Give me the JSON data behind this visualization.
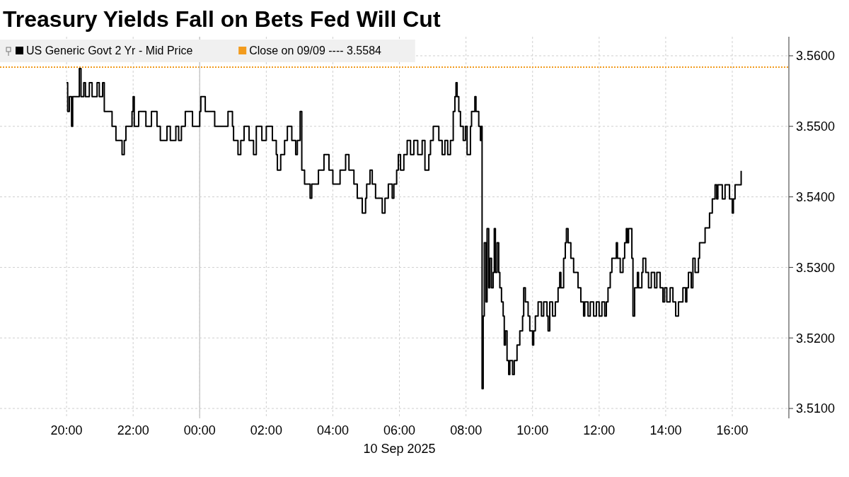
{
  "chart_data": {
    "type": "step",
    "title": "Treasury Yields Fall on Bets Fed Will Cut",
    "xlabel": "10 Sep 2025",
    "xlim": [
      "2025-09-09T18:00",
      "2025-09-10T17:42"
    ],
    "ylim": [
      3.5086,
      3.5627
    ],
    "xticks": [
      {
        "value": "2025-09-09T20:00",
        "label": "20:00"
      },
      {
        "value": "2025-09-09T22:00",
        "label": "22:00"
      },
      {
        "value": "2025-09-10T00:00",
        "label": "00:00"
      },
      {
        "value": "2025-09-10T02:00",
        "label": "02:00"
      },
      {
        "value": "2025-09-10T04:00",
        "label": "04:00"
      },
      {
        "value": "2025-09-10T06:00",
        "label": "06:00"
      },
      {
        "value": "2025-09-10T08:00",
        "label": "08:00"
      },
      {
        "value": "2025-09-10T10:00",
        "label": "10:00"
      },
      {
        "value": "2025-09-10T12:00",
        "label": "12:00"
      },
      {
        "value": "2025-09-10T14:00",
        "label": "14:00"
      },
      {
        "value": "2025-09-10T16:00",
        "label": "16:00"
      }
    ],
    "yticks": [
      {
        "value": 3.51,
        "label": "3.5100"
      },
      {
        "value": 3.52,
        "label": "3.5200"
      },
      {
        "value": 3.53,
        "label": "3.5300"
      },
      {
        "value": 3.54,
        "label": "3.5400"
      },
      {
        "value": 3.55,
        "label": "3.5500"
      },
      {
        "value": 3.56,
        "label": "3.5600"
      }
    ],
    "grid": true,
    "legend": "top left",
    "ref_lines": [
      {
        "axis": "y",
        "value": 3.5584,
        "label": "Close on 09/09 ---- 3.5584",
        "color": "#f29b1d",
        "line_style": "dotted"
      },
      {
        "axis": "x",
        "value": "2025-09-10T00:00",
        "color": "#c8c8c8",
        "line_style": "solid"
      }
    ],
    "series": [
      {
        "name": "US Generic Govt 2 Yr - Mid Price",
        "color": "#000000",
        "x": [
          "2025-09-09T20:00",
          "2025-09-09T20:02",
          "2025-09-09T20:05",
          "2025-09-09T20:09",
          "2025-09-09T20:11",
          "2025-09-09T20:23",
          "2025-09-09T20:26",
          "2025-09-09T20:31",
          "2025-09-09T20:34",
          "2025-09-09T20:41",
          "2025-09-09T20:46",
          "2025-09-09T20:55",
          "2025-09-09T20:59",
          "2025-09-09T21:05",
          "2025-09-09T21:08",
          "2025-09-09T21:22",
          "2025-09-09T21:29",
          "2025-09-09T21:40",
          "2025-09-09T21:44",
          "2025-09-09T21:47",
          "2025-09-09T21:58",
          "2025-09-09T22:00",
          "2025-09-09T22:02",
          "2025-09-09T22:10",
          "2025-09-09T22:23",
          "2025-09-09T22:33",
          "2025-09-09T22:43",
          "2025-09-09T22:49",
          "2025-09-09T23:01",
          "2025-09-09T23:07",
          "2025-09-09T23:17",
          "2025-09-09T23:22",
          "2025-09-09T23:27",
          "2025-09-09T23:34",
          "2025-09-09T23:47",
          "2025-09-10T00:00",
          "2025-09-10T00:02",
          "2025-09-10T00:10",
          "2025-09-10T00:27",
          "2025-09-10T00:49",
          "2025-09-10T00:51",
          "2025-09-10T00:59",
          "2025-09-10T01:01",
          "2025-09-10T01:09",
          "2025-09-10T01:14",
          "2025-09-10T01:20",
          "2025-09-10T01:29",
          "2025-09-10T01:37",
          "2025-09-10T01:42",
          "2025-09-10T01:52",
          "2025-09-10T02:00",
          "2025-09-10T02:11",
          "2025-09-10T02:18",
          "2025-09-10T02:20",
          "2025-09-10T02:26",
          "2025-09-10T02:33",
          "2025-09-10T02:38",
          "2025-09-10T02:46",
          "2025-09-10T02:53",
          "2025-09-10T02:56",
          "2025-09-10T03:01",
          "2025-09-10T03:04",
          "2025-09-10T03:09",
          "2025-09-10T03:19",
          "2025-09-10T03:22",
          "2025-09-10T03:34",
          "2025-09-10T03:44",
          "2025-09-10T03:53",
          "2025-09-10T04:00",
          "2025-09-10T04:13",
          "2025-09-10T04:23",
          "2025-09-10T04:29",
          "2025-09-10T04:38",
          "2025-09-10T04:44",
          "2025-09-10T04:53",
          "2025-09-10T04:59",
          "2025-09-10T05:01",
          "2025-09-10T05:07",
          "2025-09-10T05:11",
          "2025-09-10T05:17",
          "2025-09-10T05:29",
          "2025-09-10T05:34",
          "2025-09-10T05:40",
          "2025-09-10T05:47",
          "2025-09-10T05:50",
          "2025-09-10T05:55",
          "2025-09-10T05:58",
          "2025-09-10T06:02",
          "2025-09-10T06:08",
          "2025-09-10T06:14",
          "2025-09-10T06:20",
          "2025-09-10T06:26",
          "2025-09-10T06:33",
          "2025-09-10T06:41",
          "2025-09-10T06:46",
          "2025-09-10T06:53",
          "2025-09-10T06:56",
          "2025-09-10T07:01",
          "2025-09-10T07:11",
          "2025-09-10T07:17",
          "2025-09-10T07:22",
          "2025-09-10T07:27",
          "2025-09-10T07:32",
          "2025-09-10T07:37",
          "2025-09-10T07:40",
          "2025-09-10T07:42",
          "2025-09-10T07:44",
          "2025-09-10T07:47",
          "2025-09-10T07:50",
          "2025-09-10T07:55",
          "2025-09-10T07:59",
          "2025-09-10T08:02",
          "2025-09-10T08:08",
          "2025-09-10T08:10",
          "2025-09-10T08:16",
          "2025-09-10T08:18",
          "2025-09-10T08:23",
          "2025-09-10T08:26",
          "2025-09-10T08:28",
          "2025-09-10T08:29",
          "2025-09-10T08:31",
          "2025-09-10T08:33",
          "2025-09-10T08:36",
          "2025-09-10T08:38",
          "2025-09-10T08:41",
          "2025-09-10T08:43",
          "2025-09-10T08:46",
          "2025-09-10T08:49",
          "2025-09-10T08:51",
          "2025-09-10T08:53",
          "2025-09-10T08:56",
          "2025-09-10T08:59",
          "2025-09-10T09:01",
          "2025-09-10T09:04",
          "2025-09-10T09:07",
          "2025-09-10T09:09",
          "2025-09-10T09:11",
          "2025-09-10T09:14",
          "2025-09-10T09:17",
          "2025-09-10T09:19",
          "2025-09-10T09:24",
          "2025-09-10T09:27",
          "2025-09-10T09:32",
          "2025-09-10T09:37",
          "2025-09-10T09:42",
          "2025-09-10T09:44",
          "2025-09-10T09:47",
          "2025-09-10T09:52",
          "2025-09-10T09:55",
          "2025-09-10T10:00",
          "2025-09-10T10:02",
          "2025-09-10T10:05",
          "2025-09-10T10:10",
          "2025-09-10T10:16",
          "2025-09-10T10:20",
          "2025-09-10T10:26",
          "2025-09-10T10:28",
          "2025-09-10T10:31",
          "2025-09-10T10:36",
          "2025-09-10T10:41",
          "2025-09-10T10:46",
          "2025-09-10T10:49",
          "2025-09-10T10:51",
          "2025-09-10T10:56",
          "2025-09-10T10:59",
          "2025-09-10T11:01",
          "2025-09-10T11:04",
          "2025-09-10T11:09",
          "2025-09-10T11:14",
          "2025-09-10T11:22",
          "2025-09-10T11:27",
          "2025-09-10T11:32",
          "2025-09-10T11:34",
          "2025-09-10T11:40",
          "2025-09-10T11:44",
          "2025-09-10T11:50",
          "2025-09-10T11:55",
          "2025-09-10T12:00",
          "2025-09-10T12:05",
          "2025-09-10T12:10",
          "2025-09-10T12:13",
          "2025-09-10T12:16",
          "2025-09-10T12:20",
          "2025-09-10T12:23",
          "2025-09-10T12:28",
          "2025-09-10T12:31",
          "2025-09-10T12:33",
          "2025-09-10T12:38",
          "2025-09-10T12:43",
          "2025-09-10T12:46",
          "2025-09-10T12:49",
          "2025-09-10T12:51",
          "2025-09-10T12:53",
          "2025-09-10T12:59",
          "2025-09-10T13:01",
          "2025-09-10T13:04",
          "2025-09-10T13:09",
          "2025-09-10T13:11",
          "2025-09-10T13:17",
          "2025-09-10T13:19",
          "2025-09-10T13:24",
          "2025-09-10T13:29",
          "2025-09-10T13:34",
          "2025-09-10T13:40",
          "2025-09-10T13:44",
          "2025-09-10T13:50",
          "2025-09-10T13:55",
          "2025-09-10T13:58",
          "2025-09-10T14:02",
          "2025-09-10T14:08",
          "2025-09-10T14:13",
          "2025-09-10T14:18",
          "2025-09-10T14:23",
          "2025-09-10T14:26",
          "2025-09-10T14:31",
          "2025-09-10T14:36",
          "2025-09-10T14:38",
          "2025-09-10T14:41",
          "2025-09-10T14:46",
          "2025-09-10T14:49",
          "2025-09-10T14:53",
          "2025-09-10T14:59",
          "2025-09-10T15:01",
          "2025-09-10T15:09",
          "2025-09-10T15:11",
          "2025-09-10T15:17",
          "2025-09-10T15:19",
          "2025-09-10T15:24",
          "2025-09-10T15:29",
          "2025-09-10T15:32",
          "2025-09-10T15:34",
          "2025-09-10T15:42",
          "2025-09-10T15:47",
          "2025-09-10T15:55",
          "2025-09-10T16:00",
          "2025-09-10T16:02",
          "2025-09-10T16:05",
          "2025-09-10T16:16"
        ],
        "values": [
          3.5562,
          3.5521,
          3.5542,
          3.55,
          3.5542,
          3.5582,
          3.5542,
          3.5562,
          3.5542,
          3.5562,
          3.5542,
          3.5562,
          3.5542,
          3.5562,
          3.5521,
          3.55,
          3.548,
          3.546,
          3.548,
          3.55,
          3.5521,
          3.5542,
          3.55,
          3.5521,
          3.55,
          3.5521,
          3.55,
          3.548,
          3.55,
          3.548,
          3.55,
          3.548,
          3.55,
          3.5521,
          3.55,
          3.5521,
          3.5542,
          3.5521,
          3.55,
          3.55,
          3.5521,
          3.55,
          3.548,
          3.546,
          3.548,
          3.55,
          3.548,
          3.546,
          3.55,
          3.548,
          3.55,
          3.548,
          3.546,
          3.5438,
          3.546,
          3.548,
          3.55,
          3.548,
          3.546,
          3.548,
          3.5521,
          3.5438,
          3.5418,
          3.5398,
          3.5418,
          3.5438,
          3.546,
          3.5438,
          3.5418,
          3.5438,
          3.546,
          3.5438,
          3.5418,
          3.5398,
          3.5377,
          3.5398,
          3.5418,
          3.5438,
          3.5418,
          3.5398,
          3.5377,
          3.5398,
          3.5418,
          3.5398,
          3.5418,
          3.5438,
          3.546,
          3.5438,
          3.546,
          3.548,
          3.546,
          3.548,
          3.546,
          3.548,
          3.5438,
          3.546,
          3.548,
          3.55,
          3.548,
          3.546,
          3.548,
          3.546,
          3.548,
          3.5521,
          3.5542,
          3.5562,
          3.5542,
          3.5521,
          3.55,
          3.548,
          3.55,
          3.546,
          3.55,
          3.5521,
          3.5542,
          3.5521,
          3.55,
          3.548,
          3.55,
          3.5128,
          3.5231,
          3.5335,
          3.5251,
          3.5355,
          3.5271,
          3.5313,
          3.5271,
          3.5293,
          3.5355,
          3.5293,
          3.5335,
          3.5293,
          3.5271,
          3.5251,
          3.5231,
          3.519,
          3.521,
          3.5168,
          3.5148,
          3.5168,
          3.5148,
          3.5168,
          3.519,
          3.521,
          3.5231,
          3.5271,
          3.5251,
          3.5231,
          3.521,
          3.519,
          3.521,
          3.5231,
          3.5251,
          3.5231,
          3.5251,
          3.5231,
          3.521,
          3.5251,
          3.5231,
          3.5251,
          3.5271,
          3.5293,
          3.5271,
          3.5313,
          3.5335,
          3.5355,
          3.5335,
          3.5313,
          3.5293,
          3.5271,
          3.5251,
          3.5231,
          3.5251,
          3.5231,
          3.5251,
          3.5231,
          3.5251,
          3.5231,
          3.5251,
          3.5231,
          3.5251,
          3.5271,
          3.5293,
          3.5313,
          3.5313,
          3.5335,
          3.5313,
          3.5293,
          3.5313,
          3.5335,
          3.5355,
          3.5335,
          3.5355,
          3.5313,
          3.5231,
          3.5271,
          3.5293,
          3.5271,
          3.5293,
          3.5313,
          3.5293,
          3.5271,
          3.5293,
          3.5271,
          3.5293,
          3.5271,
          3.5251,
          3.5271,
          3.5251,
          3.5271,
          3.5251,
          3.5231,
          3.5251,
          3.5251,
          3.5271,
          3.5251,
          3.5271,
          3.5293,
          3.5271,
          3.5313,
          3.5293,
          3.5313,
          3.5335,
          3.5335,
          3.5356,
          3.5356,
          3.5377,
          3.5397,
          3.5417,
          3.5397,
          3.5417,
          3.5397,
          3.5417,
          3.5397,
          3.5377,
          3.5397,
          3.5417,
          3.5437
        ]
      }
    ]
  }
}
